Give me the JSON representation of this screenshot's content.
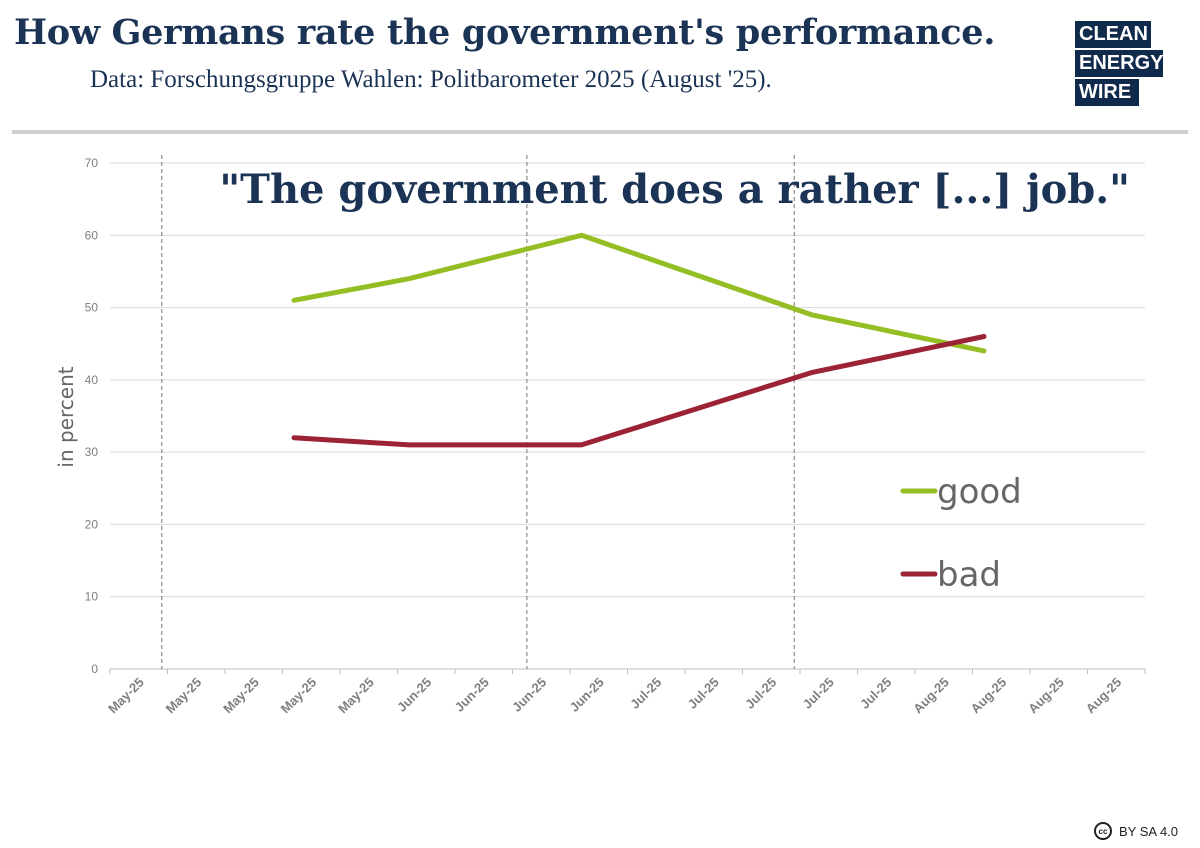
{
  "header": {
    "title": "How Germans rate the government's performance.",
    "subtitle": "Data: Forschungsgruppe Wahlen: Politbarometer 2025 (August '25)."
  },
  "logo": {
    "row1": "CLEAN",
    "row2": "ENERGY",
    "row3": "WIRE",
    "dark_color": "#102a4c",
    "accent_color": "#3aa8e0"
  },
  "license": {
    "icon_text": "cc",
    "text": "BY SA 4.0"
  },
  "chart_data": {
    "type": "line",
    "title": "\"The government does a rather [...] job.\"",
    "xlabel": "",
    "ylabel": "in percent",
    "ylim": [
      0,
      70
    ],
    "yticks": [
      0,
      10,
      20,
      30,
      40,
      50,
      60,
      70
    ],
    "grid": true,
    "legend_position": "right",
    "x": [
      "May-25",
      "May-25",
      "May-25",
      "May-25",
      "May-25",
      "Jun-25",
      "Jun-25",
      "Jun-25",
      "Jun-25",
      "Jul-25",
      "Jul-25",
      "Jul-25",
      "Jul-25",
      "Jul-25",
      "Aug-25",
      "Aug-25",
      "Aug-25",
      "Aug-25"
    ],
    "reference_lines_after_index": [
      0.9,
      7.25,
      11.9
    ],
    "series": [
      {
        "name": "good",
        "color": "#94bf24",
        "points": [
          [
            3.2,
            51
          ],
          [
            5.2,
            54
          ],
          [
            8.2,
            60
          ],
          [
            12.2,
            49
          ],
          [
            15.2,
            44
          ]
        ]
      },
      {
        "name": "bad",
        "color": "#9b2335",
        "points": [
          [
            3.2,
            32
          ],
          [
            5.2,
            31
          ],
          [
            8.2,
            31
          ],
          [
            12.2,
            41
          ],
          [
            15.2,
            46
          ]
        ]
      }
    ]
  }
}
